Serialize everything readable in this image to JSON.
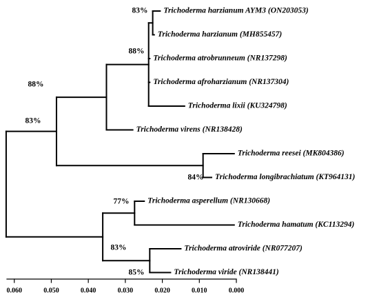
{
  "axis": {
    "xlim": [
      0.062,
      0
    ],
    "ticks": [
      {
        "value": 0.06,
        "label": "0.060"
      },
      {
        "value": 0.05,
        "label": "0.050"
      },
      {
        "value": 0.04,
        "label": "0.040"
      },
      {
        "value": 0.03,
        "label": "0.030"
      },
      {
        "value": 0.02,
        "label": "0.020"
      },
      {
        "value": 0.01,
        "label": "0.010"
      },
      {
        "value": 0,
        "label": "0.000"
      }
    ]
  },
  "tree": {
    "x": 0.0622,
    "support": "83%",
    "children": [
      {
        "x": 0.0486,
        "support": "88%",
        "children": [
          {
            "x": 0.0351,
            "children": [
              {
                "x": 0.0237,
                "support": "88%",
                "children": [
                  {
                    "x": 0.0226,
                    "support": "83%",
                    "children": [
                      {
                        "x": 0.0206,
                        "label": "Trichoderma harzianum AYM3 (ON203053)"
                      },
                      {
                        "x": 0.0222,
                        "label": "Trichoderma harzianum (MH855457)"
                      }
                    ]
                  },
                  {
                    "x": 0.0234,
                    "label": "Trichoderma atrobrunneum (NR137298)"
                  },
                  {
                    "x": 0.0234,
                    "label": "Trichoderma afroharzianum (NR137304)"
                  },
                  {
                    "x": 0.014,
                    "label": "Trichoderma lixii (KU324798)"
                  }
                ]
              },
              {
                "x": 0.028,
                "label": "Trichoderma virens (NR138428)"
              }
            ]
          },
          {
            "x": 0.009,
            "support": "84%",
            "children": [
              {
                "x": 0.0006,
                "label": "Trichoderma reesei (MK804386)"
              },
              {
                "x": 0.0067,
                "label": "Trichoderma longibrachiatum (KT964131)"
              }
            ]
          }
        ]
      },
      {
        "x": 0.0361,
        "support": "83%",
        "children": [
          {
            "x": 0.0275,
            "support": "77%",
            "children": [
              {
                "x": 0.0249,
                "label": "Trichoderma asperellum (NR130668)"
              },
              {
                "x": 0.0006,
                "label": "Trichoderma hamatum (KC113294)"
              }
            ]
          },
          {
            "x": 0.0234,
            "support": "85%",
            "children": [
              {
                "x": 0.015,
                "label": "Trichoderma atroviride (NR077207)"
              },
              {
                "x": 0.0178,
                "label": "Trichoderma viride (NR138441)"
              }
            ]
          }
        ]
      }
    ]
  }
}
